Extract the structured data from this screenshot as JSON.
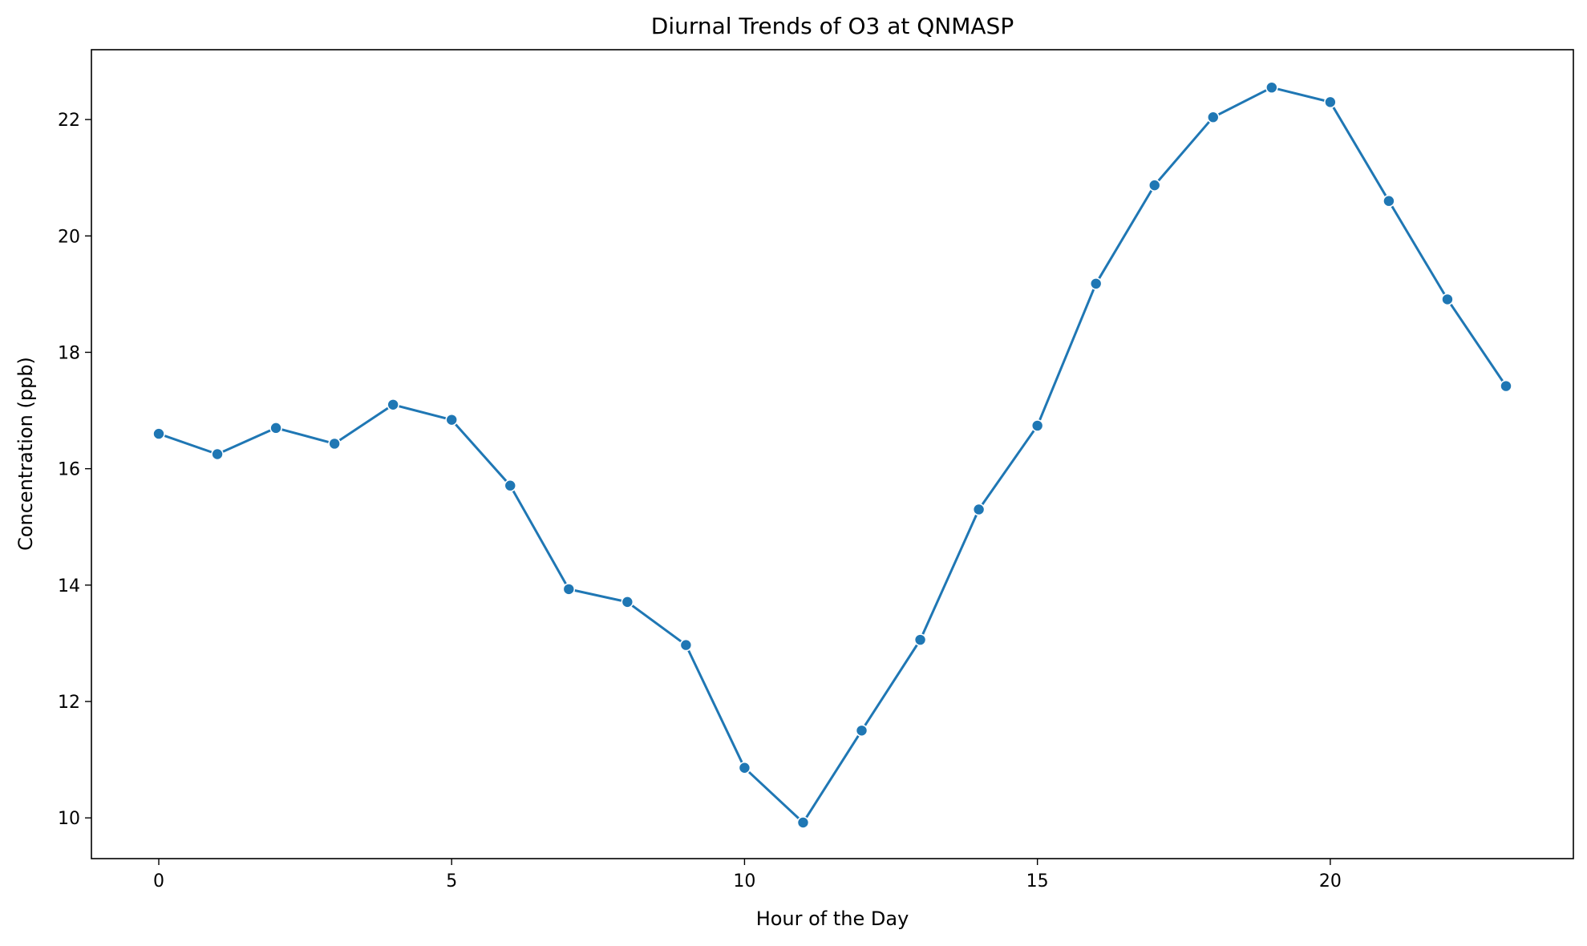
{
  "chart_data": {
    "type": "line",
    "title": "Diurnal Trends of O3 at QNMASP",
    "xlabel": "Hour of the Day",
    "ylabel": "Concentration (ppb)",
    "xlim": [
      -1.15,
      24.15
    ],
    "ylim": [
      9.3,
      23.2
    ],
    "grid": false,
    "legend": "none",
    "x_ticks": [
      0,
      5,
      10,
      15,
      20
    ],
    "x_tick_labels": [
      "0",
      "5",
      "10",
      "15",
      "20"
    ],
    "y_ticks": [
      10,
      12,
      14,
      16,
      18,
      20,
      22
    ],
    "y_tick_labels": [
      "10",
      "12",
      "14",
      "16",
      "18",
      "20",
      "22"
    ],
    "series": [
      {
        "color": "#1f77b4",
        "marker": "circle",
        "x": [
          0,
          1,
          2,
          3,
          4,
          5,
          6,
          7,
          8,
          9,
          10,
          11,
          12,
          13,
          14,
          15,
          16,
          17,
          18,
          19,
          20,
          21,
          22,
          23
        ],
        "y": [
          16.6,
          16.25,
          16.7,
          16.43,
          17.1,
          16.84,
          15.71,
          13.93,
          13.71,
          12.97,
          10.86,
          9.92,
          11.5,
          13.06,
          15.3,
          16.74,
          19.18,
          20.87,
          22.04,
          22.55,
          22.3,
          20.6,
          18.91,
          17.42
        ]
      }
    ]
  }
}
